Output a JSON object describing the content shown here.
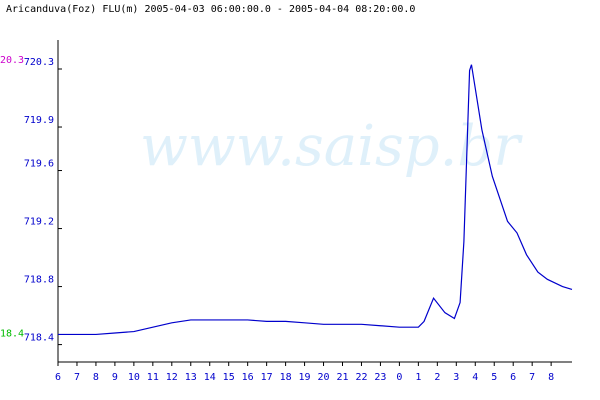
{
  "chart_data": {
    "type": "line",
    "title": "Aricanduva(Foz) FLU(m) 2005-04-03 06:00:00.0 - 2005-04-04 08:20:00.0",
    "watermark": "www.saisp.br",
    "max_label": "20.3",
    "max_color": "#cc00cc",
    "min_label": "18.4",
    "min_color": "#00bb00",
    "xlim": [
      0,
      27.1
    ],
    "xticks": [
      {
        "value": 0,
        "label": "6"
      },
      {
        "value": 1,
        "label": "7"
      },
      {
        "value": 2,
        "label": "8"
      },
      {
        "value": 3,
        "label": "9"
      },
      {
        "value": 4,
        "label": "10"
      },
      {
        "value": 5,
        "label": "11"
      },
      {
        "value": 6,
        "label": "12"
      },
      {
        "value": 7,
        "label": "13"
      },
      {
        "value": 8,
        "label": "14"
      },
      {
        "value": 9,
        "label": "15"
      },
      {
        "value": 10,
        "label": "16"
      },
      {
        "value": 11,
        "label": "17"
      },
      {
        "value": 12,
        "label": "18"
      },
      {
        "value": 13,
        "label": "19"
      },
      {
        "value": 14,
        "label": "20"
      },
      {
        "value": 15,
        "label": "21"
      },
      {
        "value": 16,
        "label": "22"
      },
      {
        "value": 17,
        "label": "23"
      },
      {
        "value": 18,
        "label": "0"
      },
      {
        "value": 19,
        "label": "1"
      },
      {
        "value": 20,
        "label": "2"
      },
      {
        "value": 21,
        "label": "3"
      },
      {
        "value": 22,
        "label": "4"
      },
      {
        "value": 23,
        "label": "5"
      },
      {
        "value": 24,
        "label": "6"
      },
      {
        "value": 25,
        "label": "7"
      },
      {
        "value": 26,
        "label": "8"
      }
    ],
    "ylim": [
      718.28,
      720.5
    ],
    "yticks": [
      718.4,
      718.8,
      719.2,
      719.6,
      719.9,
      720.3
    ],
    "series": [
      {
        "name": "Aricanduva(Foz)",
        "color": "#0000cc",
        "x": [
          0,
          1,
          2,
          3,
          4,
          5,
          6,
          7,
          8,
          9,
          10,
          11,
          12,
          13,
          14,
          15,
          16,
          17,
          18,
          19,
          19.3,
          19.8,
          20.4,
          20.9,
          21.2,
          21.4,
          21.7,
          21.8,
          22.35,
          22.9,
          23.7,
          24.2,
          24.7,
          25.3,
          25.8,
          26.6,
          27.1
        ],
        "values": [
          718.47,
          718.47,
          718.47,
          718.48,
          718.49,
          718.52,
          718.55,
          718.57,
          718.57,
          718.57,
          718.57,
          718.56,
          718.56,
          718.55,
          718.54,
          718.54,
          718.54,
          718.53,
          718.52,
          718.52,
          718.56,
          718.72,
          718.62,
          718.58,
          718.69,
          719.11,
          720.29,
          720.33,
          719.88,
          719.56,
          719.25,
          719.17,
          719.02,
          718.9,
          718.85,
          718.8,
          718.78
        ]
      }
    ]
  }
}
